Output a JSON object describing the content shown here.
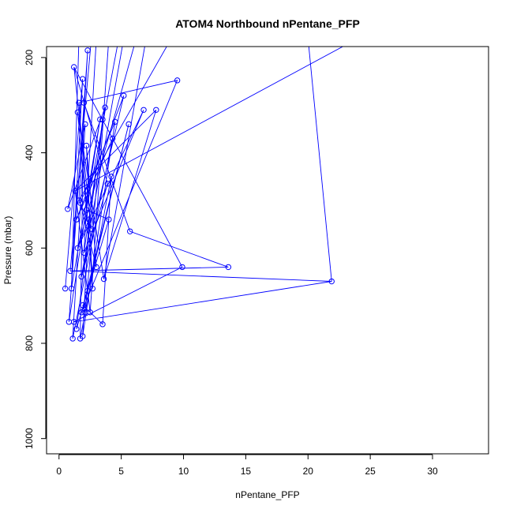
{
  "chart_data": {
    "type": "line",
    "title": "ATOM4 Northbound nPentane_PFP",
    "xlabel": "nPentane_PFP",
    "ylabel": "Pressure (mbar)",
    "xlim": [
      -1,
      34.5
    ],
    "ylim": [
      1032,
      177
    ],
    "y_reversed": true,
    "xticks": [
      0,
      5,
      10,
      15,
      20,
      25,
      30
    ],
    "yticks": [
      200,
      400,
      600,
      800,
      1000
    ],
    "grid": false,
    "legend": "none",
    "series_color": "#0000ff",
    "marker": "open-circle",
    "points": [
      [
        0.5,
        685
      ],
      [
        0.7,
        518
      ],
      [
        0.9,
        648
      ],
      [
        0.8,
        755
      ],
      [
        1.0,
        685
      ],
      [
        1.1,
        790
      ],
      [
        1.2,
        755
      ],
      [
        1.3,
        480
      ],
      [
        1.4,
        770
      ],
      [
        1.2,
        220
      ],
      [
        1.6,
        295
      ],
      [
        1.5,
        315
      ],
      [
        1.4,
        540
      ],
      [
        1.6,
        500
      ],
      [
        1.5,
        600
      ],
      [
        1.7,
        790
      ],
      [
        1.8,
        735
      ],
      [
        1.9,
        785
      ],
      [
        1.7,
        505
      ],
      [
        1.8,
        660
      ],
      [
        1.9,
        245
      ],
      [
        2.0,
        295
      ],
      [
        2.1,
        340
      ],
      [
        2.2,
        385
      ],
      [
        2.3,
        185
      ],
      [
        2.2,
        520
      ],
      [
        2.0,
        610
      ],
      [
        2.3,
        690
      ],
      [
        2.5,
        735
      ],
      [
        2.1,
        735
      ],
      [
        1.9,
        720
      ],
      [
        2.4,
        540
      ],
      [
        2.6,
        560
      ],
      [
        2.7,
        685
      ],
      [
        3.0,
        640
      ],
      [
        3.3,
        330
      ],
      [
        3.5,
        330
      ],
      [
        3.7,
        305
      ],
      [
        3.9,
        465
      ],
      [
        3.6,
        665
      ],
      [
        3.5,
        760
      ],
      [
        4.0,
        540
      ],
      [
        4.3,
        370
      ],
      [
        4.5,
        335
      ],
      [
        4.2,
        450
      ],
      [
        5.2,
        280
      ],
      [
        5.6,
        340
      ],
      [
        5.7,
        565
      ],
      [
        6.8,
        310
      ],
      [
        7.8,
        310
      ],
      [
        9.5,
        248
      ],
      [
        9.9,
        640
      ],
      [
        13.6,
        640
      ],
      [
        21.9,
        670
      ]
    ],
    "path": [
      [
        0.5,
        685
      ],
      [
        1.9,
        245
      ],
      [
        1.0,
        685
      ],
      [
        3.3,
        330
      ],
      [
        0.8,
        755
      ],
      [
        2.3,
        185
      ],
      [
        1.6,
        500
      ],
      [
        2.6,
        560
      ],
      [
        1.2,
        220
      ],
      [
        3.9,
        465
      ],
      [
        1.8,
        660
      ],
      [
        5.2,
        280
      ],
      [
        1.4,
        540
      ],
      [
        4.3,
        370
      ],
      [
        1.1,
        790
      ],
      [
        2.1,
        340
      ],
      [
        0.7,
        518
      ],
      [
        3.7,
        305
      ],
      [
        2.0,
        610
      ],
      [
        6.8,
        310
      ],
      [
        1.5,
        600
      ],
      [
        2.4,
        540
      ],
      [
        1.9,
        785
      ],
      [
        4.5,
        335
      ],
      [
        1.7,
        505
      ],
      [
        3.0,
        640
      ],
      [
        2.2,
        385
      ],
      [
        2.7,
        685
      ],
      [
        1.6,
        295
      ],
      [
        9.5,
        248
      ],
      [
        1.8,
        735
      ],
      [
        5.6,
        340
      ],
      [
        2.3,
        690
      ],
      [
        2.5,
        735
      ],
      [
        1.3,
        480
      ],
      [
        7.8,
        310
      ],
      [
        3.6,
        665
      ],
      [
        1.5,
        315
      ],
      [
        2.2,
        520
      ],
      [
        4.0,
        540
      ],
      [
        1.4,
        770
      ],
      [
        3.5,
        330
      ],
      [
        2.1,
        735
      ],
      [
        1.9,
        720
      ],
      [
        3.5,
        760
      ],
      [
        4.2,
        450
      ],
      [
        1.7,
        790
      ],
      [
        2.0,
        295
      ],
      [
        5.7,
        565
      ],
      [
        13.6,
        640
      ],
      [
        0.9,
        648
      ],
      [
        21.9,
        670
      ],
      [
        1.2,
        755
      ],
      [
        9.9,
        640
      ]
    ],
    "offscale_segments": [
      [
        [
          21.9,
          670
        ],
        [
          20.0,
          160
        ]
      ],
      [
        [
          1.3,
          480
        ],
        [
          24.0,
          160
        ]
      ],
      [
        [
          1.2,
          220
        ],
        [
          9.9,
          640
        ]
      ],
      [
        [
          1.6,
          500
        ],
        [
          8.8,
          170
        ]
      ],
      [
        [
          2.0,
          610
        ],
        [
          3.0,
          160
        ]
      ],
      [
        [
          1.8,
          660
        ],
        [
          5.2,
          160
        ]
      ],
      [
        [
          1.0,
          685
        ],
        [
          1.6,
          160
        ]
      ],
      [
        [
          2.5,
          735
        ],
        [
          4.0,
          160
        ]
      ],
      [
        [
          1.5,
          600
        ],
        [
          6.2,
          160
        ]
      ],
      [
        [
          2.2,
          520
        ],
        [
          4.8,
          160
        ]
      ],
      [
        [
          3.6,
          665
        ],
        [
          7.0,
          160
        ]
      ],
      [
        [
          0.9,
          648
        ],
        [
          2.6,
          160
        ]
      ]
    ]
  }
}
